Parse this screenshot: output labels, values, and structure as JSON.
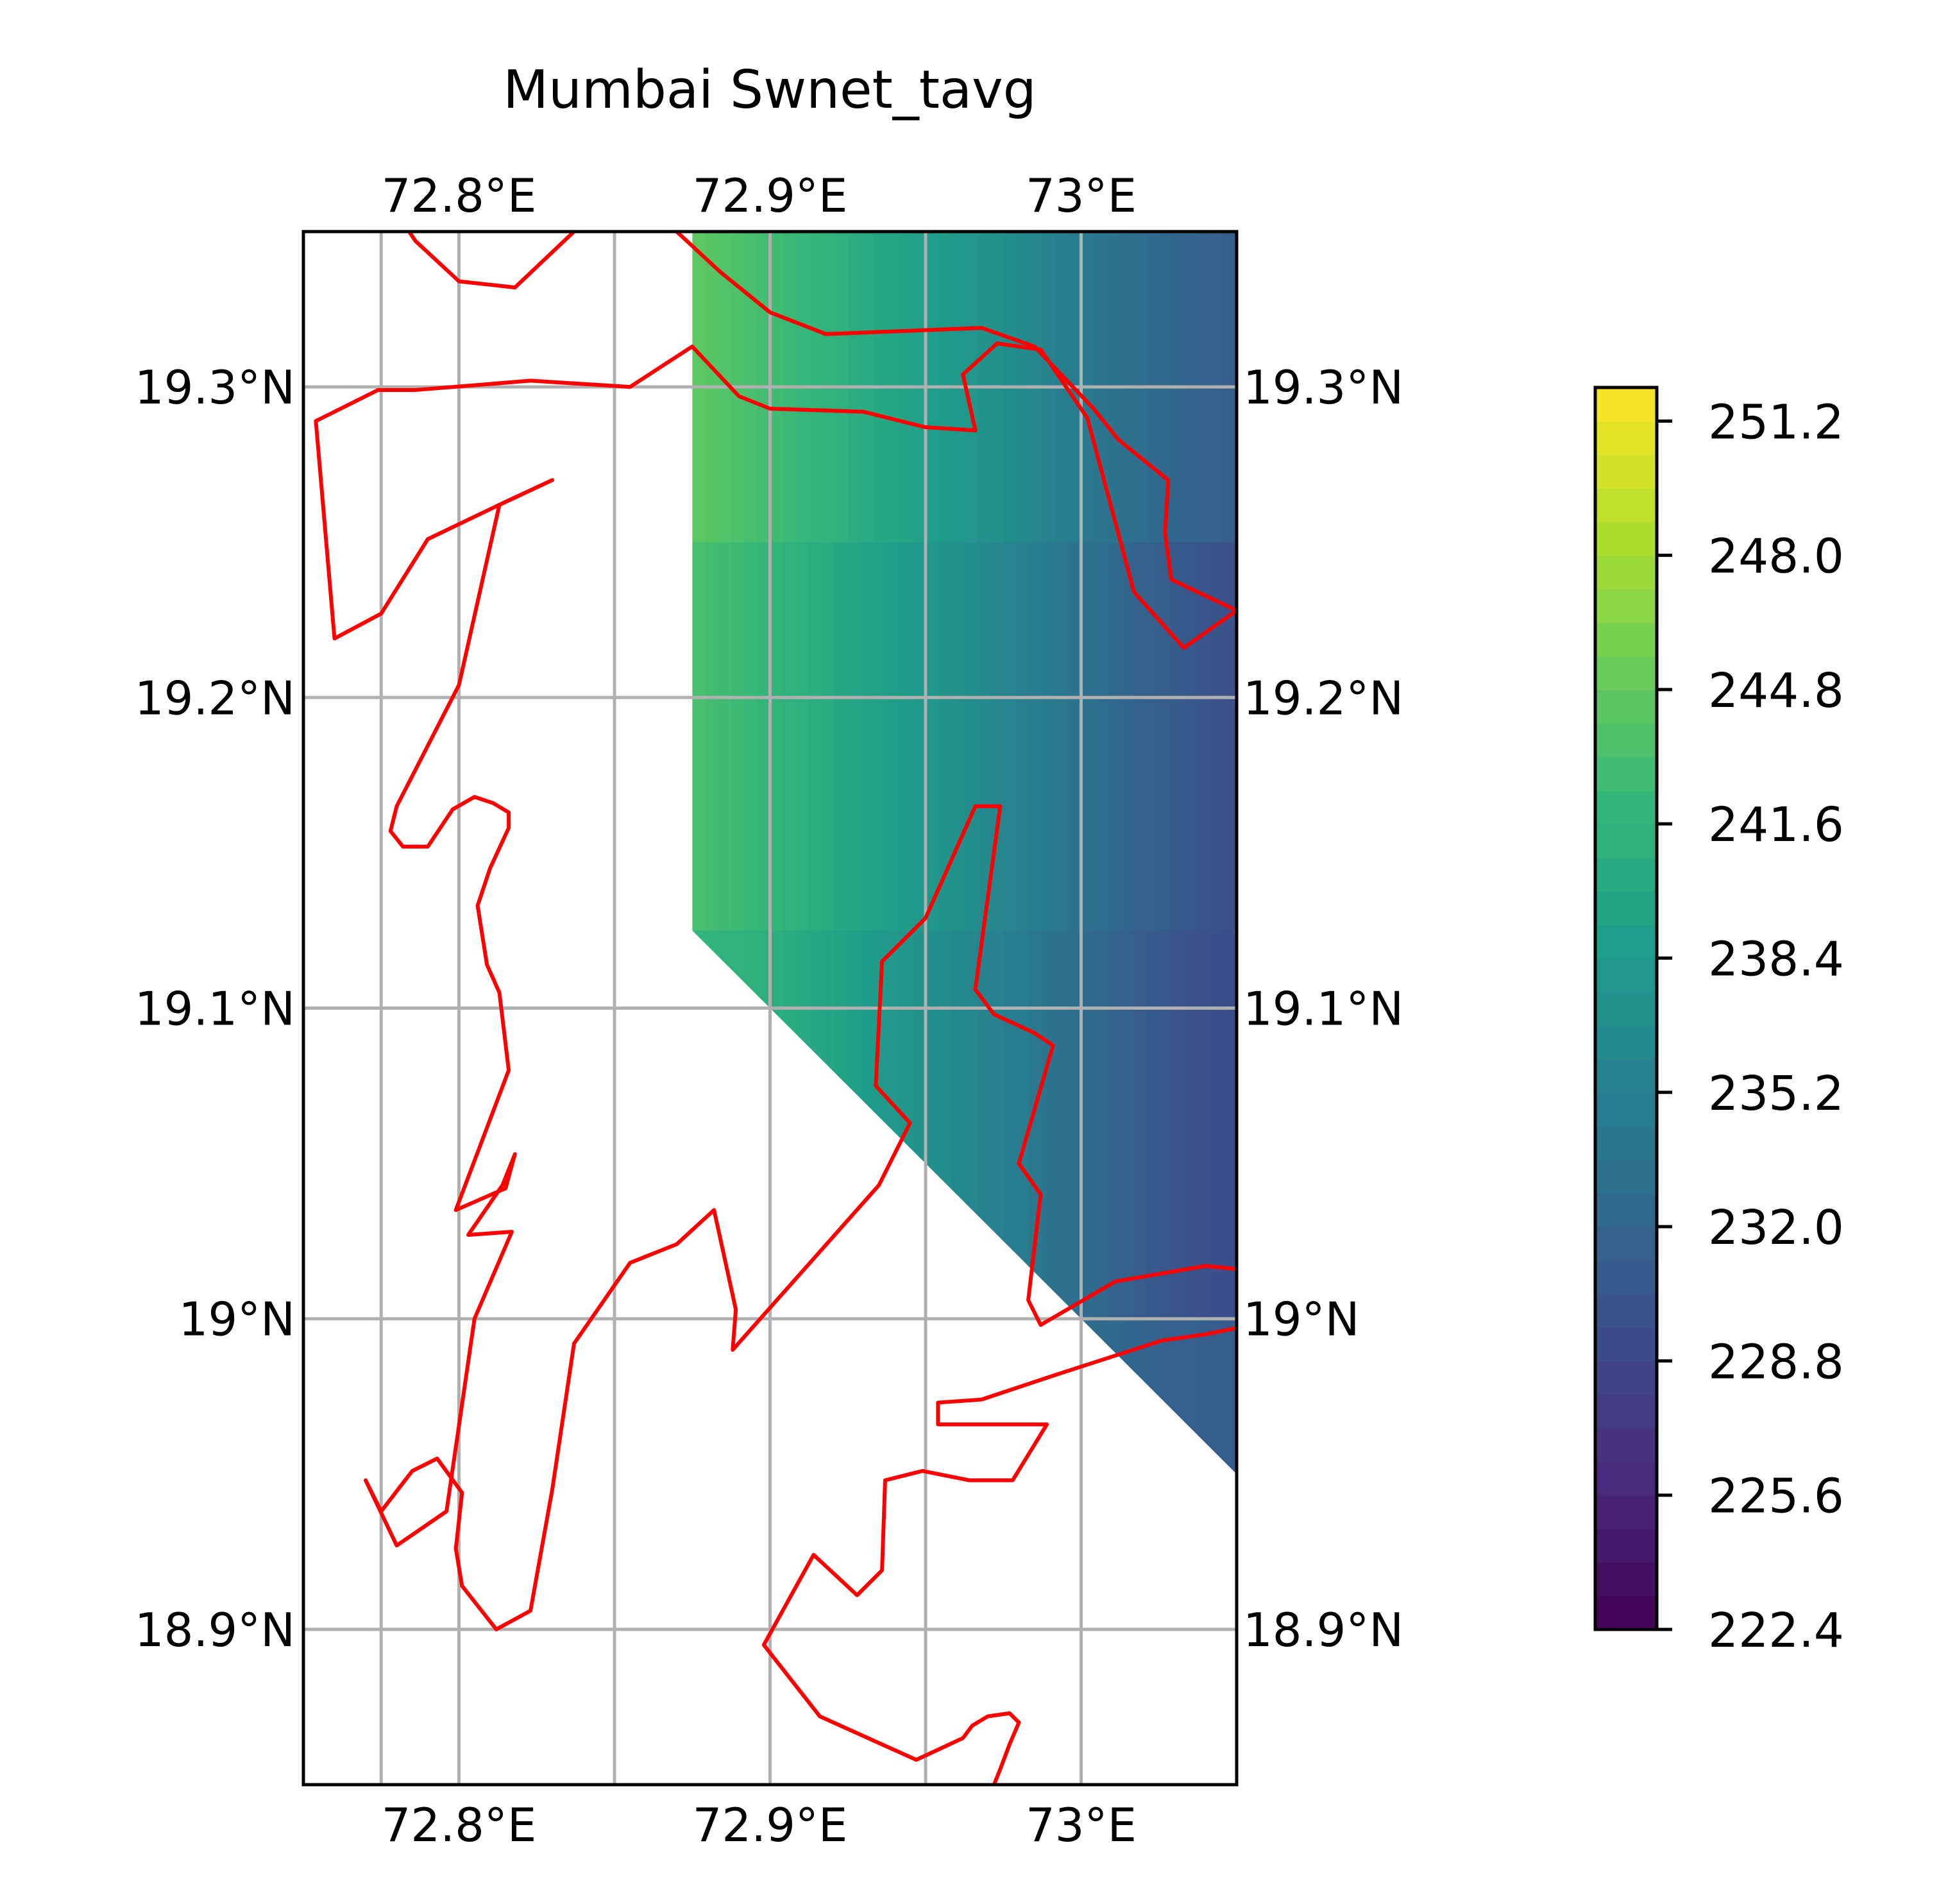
{
  "chart_data": {
    "type": "heatmap",
    "title": "Mumbai Swnet_tavg",
    "xlabel": "",
    "ylabel": "",
    "xlim": [
      72.75,
      73.05
    ],
    "ylim": [
      18.85,
      19.35
    ],
    "x_ticks": [
      72.8,
      72.9,
      73.0
    ],
    "x_tick_labels": [
      "72.8°E",
      "72.9°E",
      "73°E"
    ],
    "y_ticks": [
      18.9,
      19.0,
      19.1,
      19.2,
      19.3
    ],
    "y_tick_labels": [
      "18.9°N",
      "19°N",
      "19.1°N",
      "19.2°N",
      "19.3°N"
    ],
    "colorbar": {
      "colormap": "viridis",
      "min": 222.4,
      "max": 252.0,
      "ticks": [
        222.4,
        225.6,
        228.8,
        232.0,
        235.2,
        238.4,
        241.6,
        244.8,
        248.0,
        251.2
      ],
      "tick_labels": [
        "222.4",
        "225.6",
        "228.8",
        "232.0",
        "235.2",
        "238.4",
        "241.6",
        "244.8",
        "248.0",
        "251.2"
      ]
    },
    "field": {
      "x": [
        72.875,
        72.9,
        72.925,
        72.95,
        72.975,
        73.0,
        73.025,
        73.05
      ],
      "rows": [
        {
          "y": 19.35,
          "values": [
            245.0,
            243.4,
            241.5,
            239.5,
            237.5,
            235.2,
            233.0,
            231.6
          ]
        },
        {
          "y": 19.25,
          "values": [
            244.0,
            242.4,
            240.6,
            238.6,
            236.5,
            234.1,
            231.8,
            230.3
          ]
        },
        {
          "y": 19.125,
          "values": [
            242.9,
            241.3,
            239.5,
            237.5,
            235.4,
            233.0,
            230.5,
            229.0
          ]
        },
        {
          "y": 19.0,
          "values": [
            null,
            240.8,
            239.0,
            237.0,
            235.0,
            232.7,
            230.6,
            229.8
          ]
        },
        {
          "y": 18.95,
          "values": [
            null,
            null,
            238.6,
            236.6,
            234.8,
            233.3,
            232.5,
            232.2
          ]
        }
      ],
      "valid_region": [
        [
          72.875,
          19.35
        ],
        [
          73.05,
          19.35
        ],
        [
          73.05,
          18.95
        ],
        [
          72.875,
          19.125
        ]
      ]
    },
    "grid": true,
    "coastline_color": "#ff0000",
    "coastlines": [
      [
        [
          72.784,
          19.35
        ],
        [
          72.786,
          19.347
        ],
        [
          72.8,
          19.334
        ],
        [
          72.818,
          19.332
        ],
        [
          72.837,
          19.35
        ]
      ],
      [
        [
          72.87,
          19.35
        ],
        [
          72.884,
          19.337
        ],
        [
          72.9,
          19.324
        ],
        [
          72.918,
          19.317
        ],
        [
          72.943,
          19.318
        ],
        [
          72.968,
          19.319
        ],
        [
          72.985,
          19.313
        ],
        [
          73.004,
          19.293
        ],
        [
          73.012,
          19.283
        ],
        [
          73.028,
          19.27
        ],
        [
          73.027,
          19.253
        ],
        [
          73.029,
          19.238
        ],
        [
          73.05,
          19.228
        ],
        [
          73.033,
          19.216
        ],
        [
          73.017,
          19.234
        ],
        [
          73.002,
          19.29
        ],
        [
          72.987,
          19.312
        ],
        [
          72.973,
          19.314
        ],
        [
          72.962,
          19.304
        ],
        [
          72.966,
          19.286
        ],
        [
          72.95,
          19.287
        ],
        [
          72.93,
          19.292
        ],
        [
          72.9,
          19.293
        ],
        [
          72.89,
          19.297
        ],
        [
          72.875,
          19.313
        ],
        [
          72.855,
          19.3
        ],
        [
          72.823,
          19.302
        ],
        [
          72.786,
          19.299
        ],
        [
          72.774,
          19.299
        ],
        [
          72.754,
          19.289
        ],
        [
          72.76,
          19.219
        ],
        [
          72.775,
          19.227
        ],
        [
          72.79,
          19.251
        ],
        [
          72.815,
          19.263
        ],
        [
          72.83,
          19.27
        ],
        [
          72.813,
          19.262
        ],
        [
          72.8,
          19.204
        ],
        [
          72.78,
          19.165
        ],
        [
          72.778,
          19.157
        ],
        [
          72.782,
          19.152
        ],
        [
          72.79,
          19.152
        ],
        [
          72.798,
          19.164
        ],
        [
          72.805,
          19.168
        ],
        [
          72.811,
          19.166
        ],
        [
          72.816,
          19.163
        ],
        [
          72.816,
          19.158
        ],
        [
          72.81,
          19.145
        ],
        [
          72.806,
          19.133
        ],
        [
          72.809,
          19.114
        ],
        [
          72.813,
          19.105
        ],
        [
          72.816,
          19.08
        ],
        [
          72.799,
          19.035
        ],
        [
          72.815,
          19.042
        ],
        [
          72.818,
          19.053
        ],
        [
          72.814,
          19.043
        ],
        [
          72.803,
          19.027
        ],
        [
          72.817,
          19.028
        ],
        [
          72.805,
          19.0
        ],
        [
          72.796,
          18.938
        ],
        [
          72.78,
          18.927
        ],
        [
          72.77,
          18.948
        ],
        [
          72.775,
          18.938
        ],
        [
          72.785,
          18.951
        ],
        [
          72.793,
          18.955
        ],
        [
          72.801,
          18.944
        ],
        [
          72.799,
          18.926
        ],
        [
          72.801,
          18.914
        ],
        [
          72.812,
          18.9
        ],
        [
          72.823,
          18.906
        ],
        [
          72.83,
          18.945
        ],
        [
          72.837,
          18.992
        ],
        [
          72.855,
          19.018
        ],
        [
          72.87,
          19.024
        ],
        [
          72.882,
          19.035
        ],
        [
          72.889,
          19.003
        ],
        [
          72.888,
          18.99
        ],
        [
          72.935,
          19.043
        ],
        [
          72.945,
          19.063
        ],
        [
          72.934,
          19.075
        ],
        [
          72.936,
          19.115
        ],
        [
          72.95,
          19.129
        ],
        [
          72.966,
          19.165
        ],
        [
          72.974,
          19.165
        ],
        [
          72.966,
          19.106
        ],
        [
          72.972,
          19.098
        ],
        [
          72.985,
          19.092
        ],
        [
          72.991,
          19.088
        ],
        [
          72.98,
          19.05
        ],
        [
          72.987,
          19.04
        ],
        [
          72.983,
          19.006
        ],
        [
          72.987,
          18.998
        ],
        [
          73.011,
          19.012
        ],
        [
          73.04,
          19.017
        ],
        [
          73.05,
          19.016
        ]
      ],
      [
        [
          73.05,
          18.997
        ],
        [
          73.04,
          18.995
        ],
        [
          73.026,
          18.993
        ],
        [
          72.992,
          18.982
        ],
        [
          72.968,
          18.974
        ],
        [
          72.954,
          18.973
        ],
        [
          72.954,
          18.966
        ],
        [
          72.989,
          18.966
        ],
        [
          72.978,
          18.948
        ],
        [
          72.964,
          18.948
        ],
        [
          72.949,
          18.951
        ],
        [
          72.937,
          18.948
        ],
        [
          72.936,
          18.919
        ],
        [
          72.928,
          18.911
        ],
        [
          72.914,
          18.924
        ],
        [
          72.898,
          18.895
        ],
        [
          72.916,
          18.872
        ],
        [
          72.947,
          18.858
        ],
        [
          72.962,
          18.865
        ],
        [
          72.965,
          18.869
        ],
        [
          72.97,
          18.872
        ],
        [
          72.977,
          18.873
        ],
        [
          72.98,
          18.87
        ],
        [
          72.977,
          18.863
        ],
        [
          72.974,
          18.855
        ],
        [
          72.972,
          18.85
        ]
      ]
    ]
  }
}
